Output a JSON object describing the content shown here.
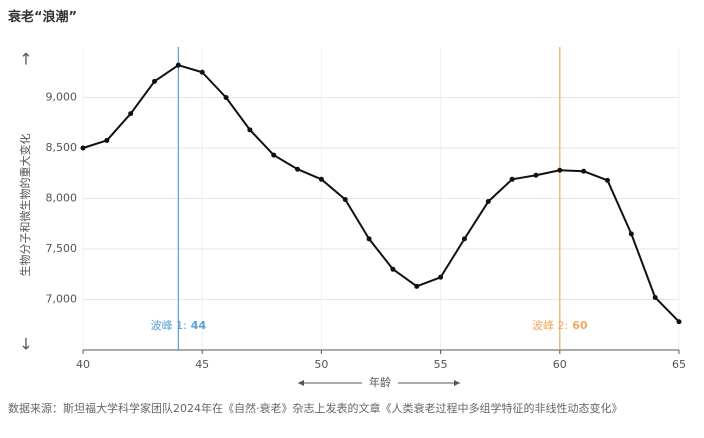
{
  "chart_data": {
    "type": "line",
    "title": "衰老“浪潮”",
    "y_label": "生物分子和微生物的重大变化",
    "x_label": "年龄",
    "source": "数据来源：斯坦福大学科学家团队2024年在《自然·衰老》杂志上发表的文章《人类衰老过程中多组学特征的非线性动态变化》",
    "x": [
      40,
      41,
      42,
      43,
      44,
      45,
      46,
      47,
      48,
      49,
      50,
      51,
      52,
      53,
      54,
      55,
      56,
      57,
      58,
      59,
      60,
      61,
      62,
      63,
      64,
      65
    ],
    "series": [
      {
        "name": "生物分子和微生物的重大变化",
        "color": "#111111",
        "values": [
          8500,
          8575,
          8840,
          9160,
          9320,
          9250,
          9000,
          8680,
          8430,
          8290,
          8190,
          7990,
          7600,
          7300,
          7130,
          7220,
          7600,
          7970,
          8190,
          8230,
          8280,
          8270,
          8180,
          7650,
          7020,
          6780
        ]
      }
    ],
    "xlim": [
      40,
      65
    ],
    "xticks": [
      40,
      45,
      50,
      55,
      60,
      65
    ],
    "ylim": [
      6500,
      9500
    ],
    "yticks": [
      {
        "value": 7000,
        "label": "7,000"
      },
      {
        "value": 7500,
        "label": "7,500"
      },
      {
        "value": 8000,
        "label": "8,000"
      },
      {
        "value": 8500,
        "label": "8,500"
      },
      {
        "value": 9000,
        "label": "9,000"
      }
    ],
    "grid": true,
    "annotations": [
      {
        "label": "波峰 1:",
        "x": 44,
        "color": "#5a9fd4"
      },
      {
        "label": "波峰 2:",
        "x": 60,
        "color": "#f0a860"
      }
    ]
  }
}
